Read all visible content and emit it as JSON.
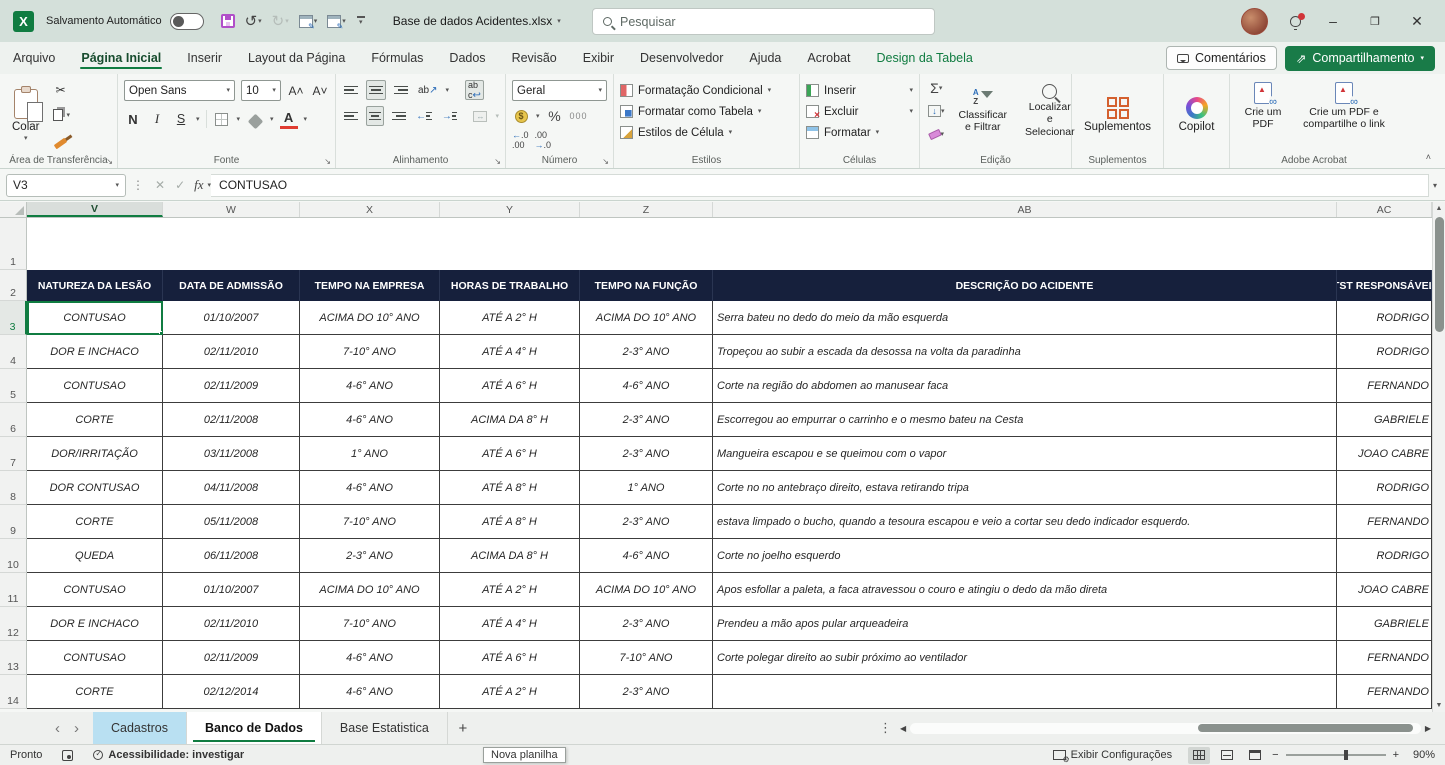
{
  "titlebar": {
    "autosave_label": "Salvamento Automático",
    "autosave_state": "off",
    "filename": "Base de dados Acidentes.xlsx",
    "search_placeholder": "Pesquisar"
  },
  "ribbon_tabs": [
    {
      "label": "Arquivo",
      "state": "normal"
    },
    {
      "label": "Página Inicial",
      "state": "active"
    },
    {
      "label": "Inserir",
      "state": "normal"
    },
    {
      "label": "Layout da Página",
      "state": "normal"
    },
    {
      "label": "Fórmulas",
      "state": "normal"
    },
    {
      "label": "Dados",
      "state": "normal"
    },
    {
      "label": "Revisão",
      "state": "normal"
    },
    {
      "label": "Exibir",
      "state": "normal"
    },
    {
      "label": "Desenvolvedor",
      "state": "normal"
    },
    {
      "label": "Ajuda",
      "state": "normal"
    },
    {
      "label": "Acrobat",
      "state": "normal"
    },
    {
      "label": "Design da Tabela",
      "state": "contextual"
    }
  ],
  "tabrow_right": {
    "comments": "Comentários",
    "share": "Compartilhamento"
  },
  "ribbon": {
    "clipboard": {
      "paste": "Colar",
      "label": "Área de Transferência"
    },
    "font": {
      "family": "Open Sans",
      "size": "10",
      "label": "Fonte"
    },
    "alignment": {
      "label": "Alinhamento"
    },
    "number": {
      "format": "Geral",
      "zeros": "000",
      "dec_more": "←.0",
      "dec_less": ".00→",
      "label": "Número"
    },
    "styles": {
      "items": [
        "Formatação Condicional",
        "Formatar como Tabela",
        "Estilos de Célula"
      ],
      "label": "Estilos"
    },
    "cells": {
      "items": [
        "Inserir",
        "Excluir",
        "Formatar"
      ],
      "label": "Células"
    },
    "editing": {
      "sort": "Classificar e Filtrar",
      "find": "Localizar e Selecionar",
      "label": "Edição"
    },
    "addins": {
      "button": "Suplementos",
      "label": "Suplementos"
    },
    "copilot": {
      "button": "Copilot"
    },
    "acrobat": {
      "create_pdf": "Crie um PDF",
      "create_share": "Crie um PDF e compartilhe o link",
      "label": "Adobe Acrobat"
    }
  },
  "formula_bar": {
    "name_box": "V3",
    "content": "CONTUSAO"
  },
  "grid": {
    "columns": [
      "V",
      "W",
      "X",
      "Y",
      "Z",
      "AB",
      "AC"
    ],
    "selected_column": "V",
    "selected_cell": "V3",
    "row_numbers": [
      1,
      2,
      3,
      4,
      5,
      6,
      7,
      8,
      9,
      10,
      11,
      12,
      13,
      14
    ]
  },
  "table": {
    "headers": [
      "NATUREZA DA LESÃO",
      "DATA DE ADMISSÃO",
      "TEMPO NA EMPRESA",
      "HORAS DE TRABALHO",
      "TEMPO NA FUNÇÃO",
      "DESCRIÇÃO DO ACIDENTE",
      "TST RESPONSÁVEL"
    ],
    "rows": [
      [
        "CONTUSAO",
        "01/10/2007",
        "ACIMA DO 10° ANO",
        "ATÉ A 2° H",
        "ACIMA DO 10° ANO",
        "Serra bateu no dedo do meio da mão esquerda",
        "RODRIGO"
      ],
      [
        "DOR E INCHACO",
        "02/11/2010",
        "7-10° ANO",
        "ATÉ A 4° H",
        "2-3° ANO",
        "Tropeçou ao subir a escada da desossa na volta da paradinha",
        "RODRIGO"
      ],
      [
        "CONTUSAO",
        "02/11/2009",
        "4-6° ANO",
        "ATÉ A 6° H",
        "4-6° ANO",
        "Corte na região do abdomen ao manusear faca",
        "FERNANDO"
      ],
      [
        "CORTE",
        "02/11/2008",
        "4-6° ANO",
        "ACIMA DA 8° H",
        "2-3° ANO",
        "Escorregou ao empurrar o carrinho e o mesmo bateu na Cesta",
        "GABRIELE"
      ],
      [
        "DOR/IRRITAÇÃO",
        "03/11/2008",
        "1° ANO",
        "ATÉ A 6° H",
        "2-3° ANO",
        "Mangueira escapou e se queimou com o vapor",
        "JOAO CABRE"
      ],
      [
        "DOR CONTUSAO",
        "04/11/2008",
        "4-6° ANO",
        "ATÉ A 8° H",
        "1° ANO",
        "Corte no no antebraço direito, estava retirando tripa",
        "RODRIGO"
      ],
      [
        "CORTE",
        "05/11/2008",
        "7-10° ANO",
        "ATÉ A 8° H",
        "2-3° ANO",
        "estava limpado o bucho, quando a tesoura escapou e veio a cortar seu dedo indicador esquerdo.",
        "FERNANDO"
      ],
      [
        "QUEDA",
        "06/11/2008",
        "2-3° ANO",
        "ACIMA DA 8° H",
        "4-6° ANO",
        "Corte no joelho esquerdo",
        "RODRIGO"
      ],
      [
        "CONTUSAO",
        "01/10/2007",
        "ACIMA DO 10° ANO",
        "ATÉ A 2° H",
        "ACIMA DO 10° ANO",
        "Apos esfollar a paleta, a faca atravessou o couro e atingiu o dedo da mão direta",
        "JOAO CABRE"
      ],
      [
        "DOR E INCHACO",
        "02/11/2010",
        "7-10° ANO",
        "ATÉ A 4° H",
        "2-3° ANO",
        "Prendeu a mão apos pular arqueadeira",
        "GABRIELE"
      ],
      [
        "CONTUSAO",
        "02/11/2009",
        "4-6° ANO",
        "ATÉ A 6° H",
        "7-10° ANO",
        "Corte polegar direito ao subir próximo ao ventilador",
        "FERNANDO"
      ],
      [
        "CORTE",
        "02/12/2014",
        "4-6° ANO",
        "ATÉ A 2° H",
        "2-3° ANO",
        "",
        "FERNANDO"
      ]
    ]
  },
  "sheet_tabs": {
    "tabs": [
      {
        "label": "Cadastros",
        "state": "colored"
      },
      {
        "label": "Banco de Dados",
        "state": "active"
      },
      {
        "label": "Base Estatistica",
        "state": "normal"
      }
    ],
    "new_sheet_tooltip": "Nova planilha"
  },
  "status_bar": {
    "ready": "Pronto",
    "accessibility": "Acessibilidade: investigar",
    "view_settings": "Exibir Configurações",
    "zoom": "90%"
  },
  "colors": {
    "accent_green": "#107c41",
    "table_header_navy": "#16203c",
    "titlebar_bg": "#d4e0da",
    "colored_tab_blue": "#b9e0f2",
    "save_icon_purple": "#b14fc9",
    "addins_orange": "#d4602e"
  }
}
